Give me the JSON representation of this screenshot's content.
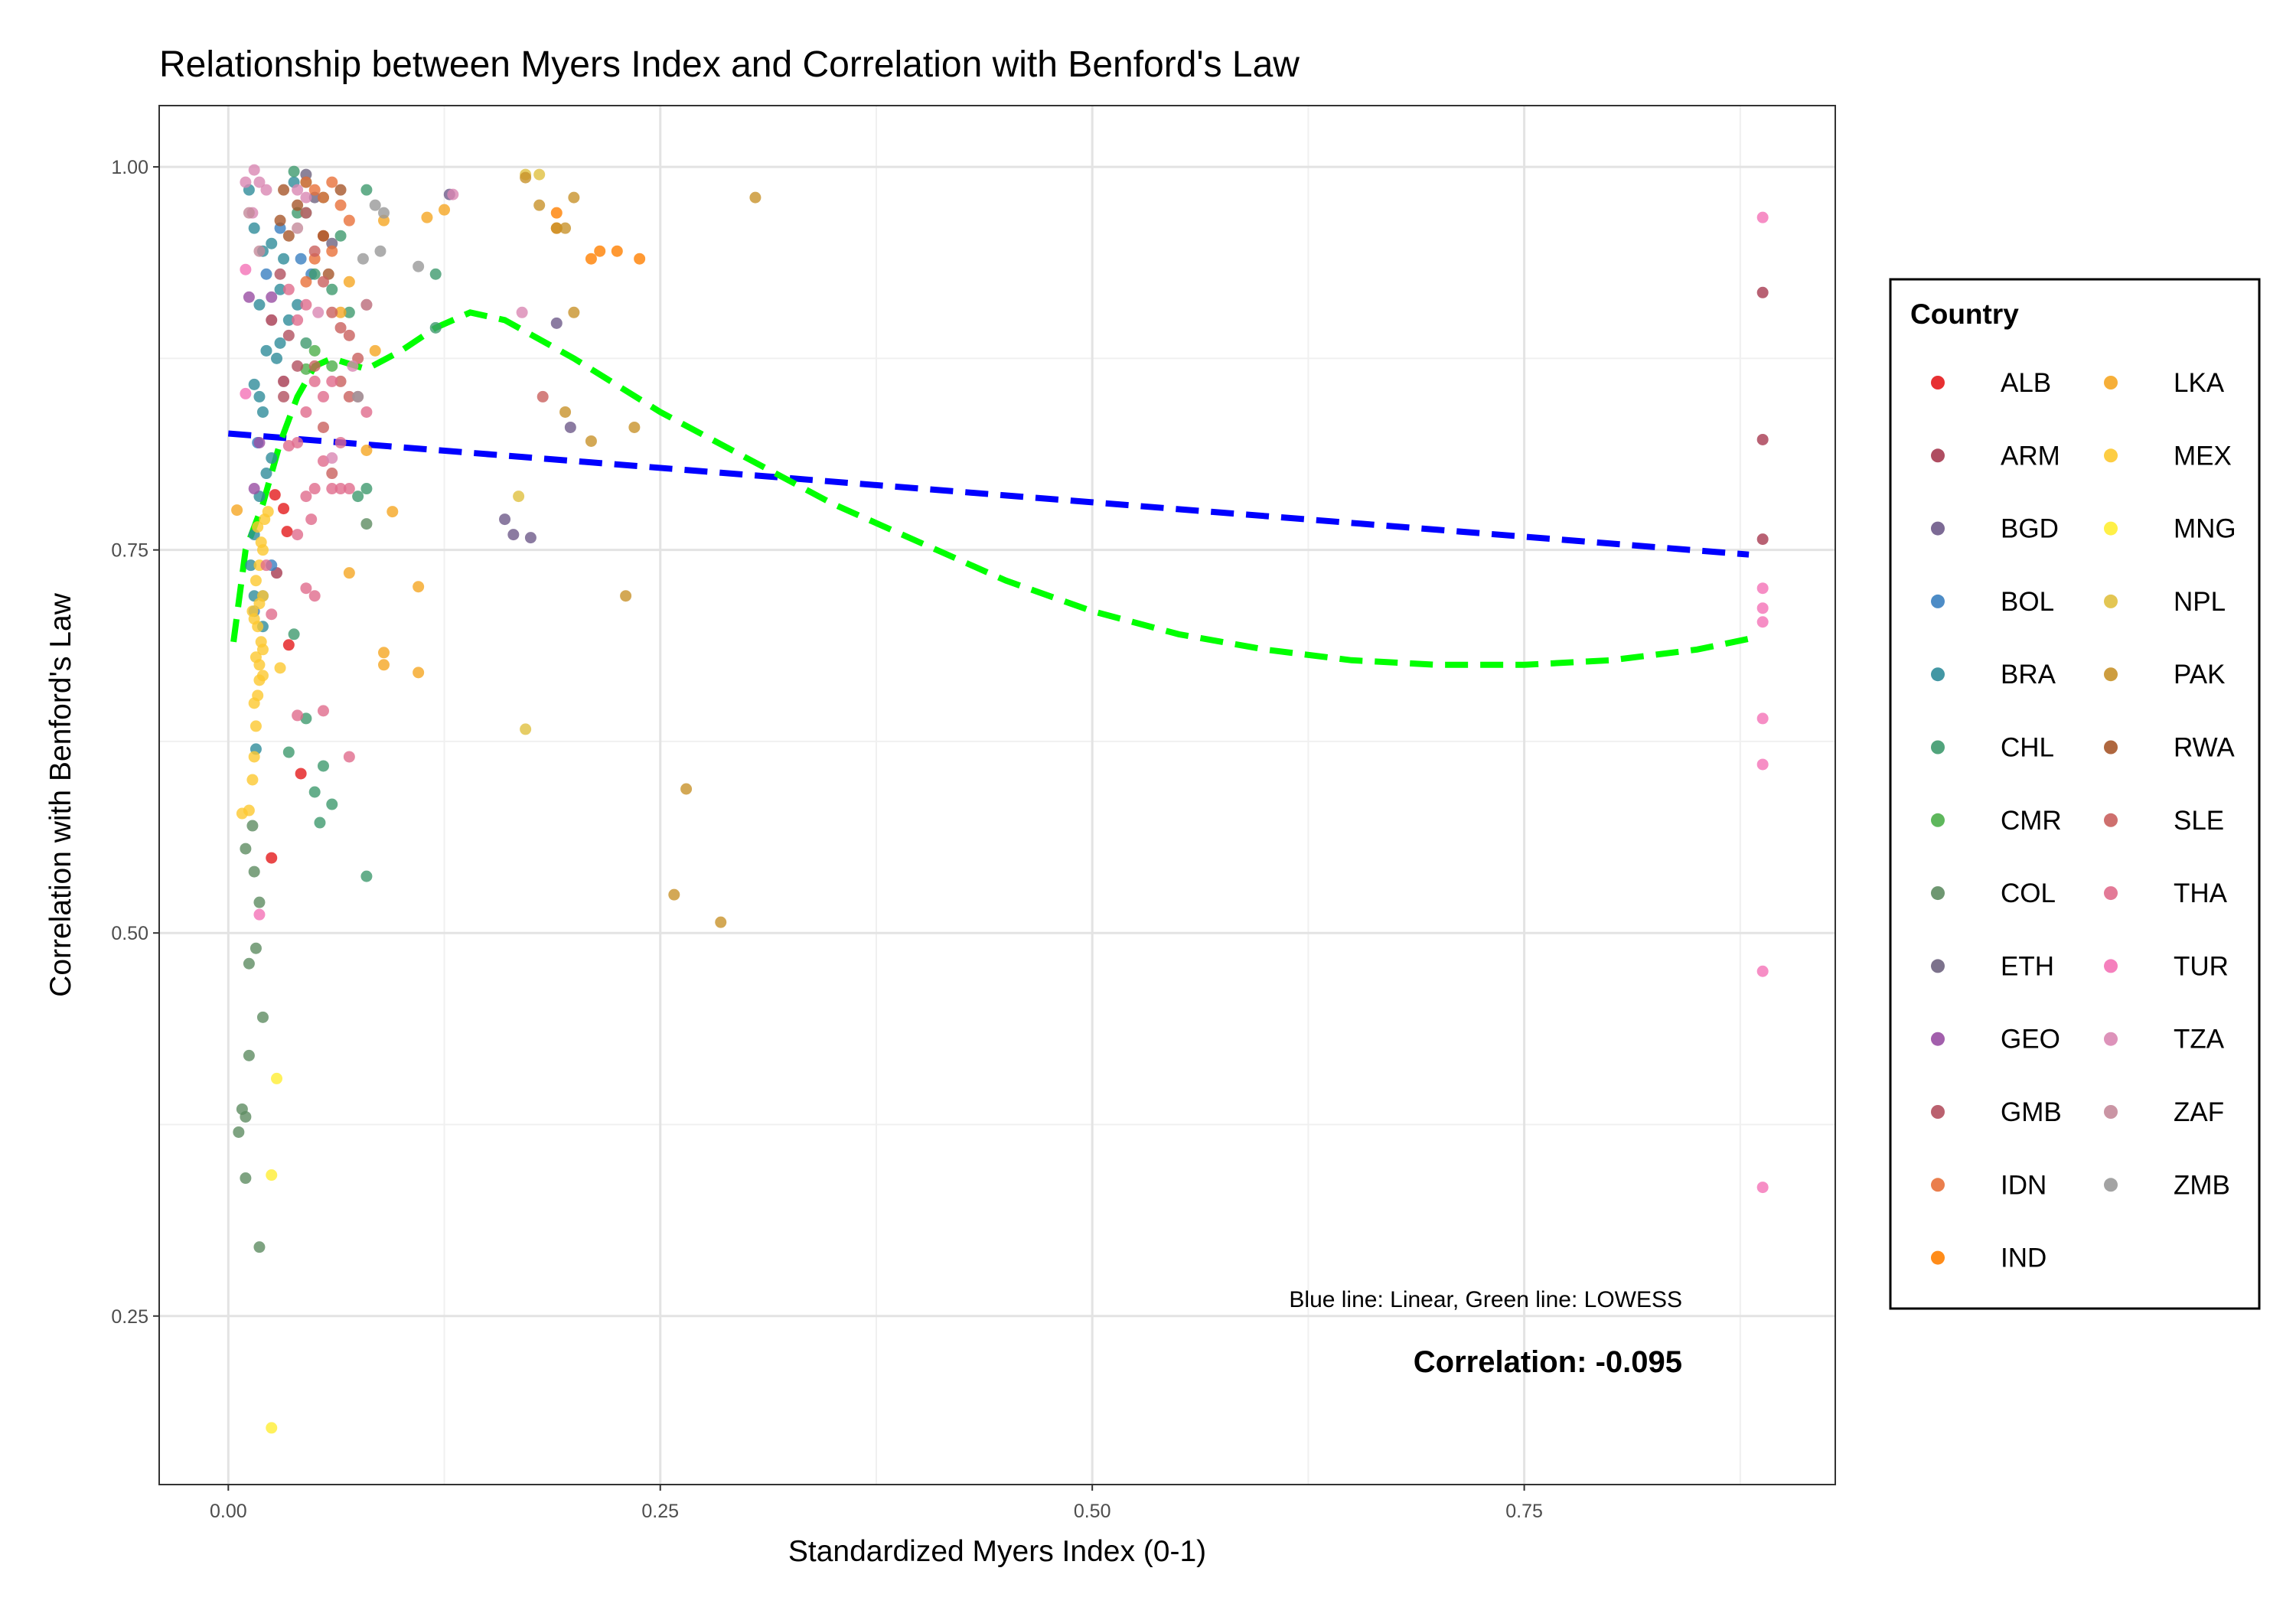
{
  "chart_data": {
    "type": "scatter",
    "title": "Relationship between Myers Index and Correlation with Benford's Law",
    "xlabel": "Standardized Myers Index (0-1)",
    "ylabel": "Correlation with Benford's Law",
    "xlim": [
      -0.04,
      0.93
    ],
    "ylim": [
      0.14,
      1.04
    ],
    "x_ticks": [
      0.0,
      0.25,
      0.5,
      0.75
    ],
    "x_tick_labels": [
      "0.00",
      "0.25",
      "0.50",
      "0.75"
    ],
    "y_ticks": [
      0.25,
      0.5,
      0.75,
      1.0
    ],
    "y_tick_labels": [
      "0.25",
      "0.50",
      "0.75",
      "1.00"
    ],
    "grid": true,
    "legend": {
      "title": "Country",
      "position": "right",
      "entries": [
        "ALB",
        "ARM",
        "BGD",
        "BOL",
        "BRA",
        "CHL",
        "CMR",
        "COL",
        "ETH",
        "GEO",
        "GMB",
        "IDN",
        "IND",
        "LKA",
        "MEX",
        "MNG",
        "NPL",
        "PAK",
        "RWA",
        "SLE",
        "THA",
        "TUR",
        "TZA",
        "ZAF",
        "ZMB"
      ]
    },
    "colors": {
      "ALB": "#E41A1C",
      "ARM": "#A63A50",
      "BGD": "#6E5A8A",
      "BOL": "#3A7FC0",
      "BRA": "#2F8C9A",
      "CHL": "#3E9A6E",
      "CMR": "#4DAF4A",
      "COL": "#5E8C62",
      "ETH": "#6E6380",
      "GEO": "#984EA3",
      "GMB": "#B2505F",
      "IDN": "#E8703A",
      "IND": "#FF7F00",
      "LKA": "#F5A623",
      "MEX": "#FDC82F",
      "MNG": "#FFEE33",
      "NPL": "#E0C040",
      "PAK": "#C8922A",
      "RWA": "#A6562A",
      "SLE": "#C9605E",
      "THA": "#E06C8C",
      "TUR": "#F472B6",
      "TZA": "#D987B3",
      "ZAF": "#C48A9A",
      "ZMB": "#999999"
    },
    "lines": [
      {
        "name": "Linear",
        "color": "#0000FF",
        "x": [
          0.0,
          0.88
        ],
        "y": [
          0.826,
          0.747
        ]
      },
      {
        "name": "LOWESS",
        "color": "#00FF00",
        "x": [
          0.003,
          0.01,
          0.02,
          0.03,
          0.04,
          0.05,
          0.06,
          0.08,
          0.1,
          0.12,
          0.14,
          0.16,
          0.2,
          0.25,
          0.3,
          0.35,
          0.4,
          0.45,
          0.5,
          0.55,
          0.6,
          0.65,
          0.7,
          0.75,
          0.8,
          0.85,
          0.88
        ],
        "y": [
          0.69,
          0.75,
          0.78,
          0.82,
          0.85,
          0.87,
          0.875,
          0.868,
          0.88,
          0.895,
          0.905,
          0.9,
          0.875,
          0.84,
          0.81,
          0.78,
          0.755,
          0.73,
          0.71,
          0.695,
          0.685,
          0.678,
          0.675,
          0.675,
          0.678,
          0.685,
          0.692
        ]
      }
    ],
    "points": {
      "ALB": [
        [
          0.025,
          0.549
        ],
        [
          0.035,
          0.688
        ],
        [
          0.042,
          0.604
        ],
        [
          0.034,
          0.762
        ],
        [
          0.027,
          0.786
        ],
        [
          0.032,
          0.777
        ]
      ],
      "ARM": [
        [
          0.888,
          0.918
        ],
        [
          0.888,
          0.822
        ],
        [
          0.888,
          0.757
        ],
        [
          0.025,
          0.9
        ],
        [
          0.032,
          0.86
        ],
        [
          0.028,
          0.735
        ]
      ],
      "BGD": [
        [
          0.16,
          0.77
        ],
        [
          0.165,
          0.76
        ],
        [
          0.175,
          0.758
        ],
        [
          0.19,
          0.898
        ],
        [
          0.198,
          0.83
        ],
        [
          0.128,
          0.982
        ]
      ],
      "BOL": [
        [
          0.042,
          0.94
        ],
        [
          0.022,
          0.93
        ],
        [
          0.017,
          0.82
        ],
        [
          0.02,
          0.72
        ],
        [
          0.015,
          0.71
        ],
        [
          0.025,
          0.74
        ],
        [
          0.03,
          0.96
        ],
        [
          0.048,
          0.93
        ]
      ],
      "BRA": [
        [
          0.012,
          0.985
        ],
        [
          0.015,
          0.96
        ],
        [
          0.02,
          0.945
        ],
        [
          0.025,
          0.95
        ],
        [
          0.03,
          0.92
        ],
        [
          0.018,
          0.91
        ],
        [
          0.022,
          0.88
        ],
        [
          0.028,
          0.875
        ],
        [
          0.015,
          0.858
        ],
        [
          0.018,
          0.85
        ],
        [
          0.02,
          0.84
        ],
        [
          0.025,
          0.81
        ],
        [
          0.022,
          0.8
        ],
        [
          0.018,
          0.785
        ],
        [
          0.015,
          0.76
        ],
        [
          0.013,
          0.74
        ],
        [
          0.015,
          0.72
        ],
        [
          0.02,
          0.7
        ],
        [
          0.016,
          0.62
        ],
        [
          0.035,
          0.9
        ],
        [
          0.04,
          0.91
        ],
        [
          0.032,
          0.94
        ],
        [
          0.038,
          0.99
        ],
        [
          0.045,
          0.97
        ],
        [
          0.03,
          0.885
        ]
      ],
      "CHL": [
        [
          0.038,
          0.997
        ],
        [
          0.045,
          0.99
        ],
        [
          0.055,
          0.98
        ],
        [
          0.04,
          0.97
        ],
        [
          0.065,
          0.955
        ],
        [
          0.05,
          0.93
        ],
        [
          0.06,
          0.92
        ],
        [
          0.07,
          0.905
        ],
        [
          0.045,
          0.885
        ],
        [
          0.08,
          0.79
        ],
        [
          0.075,
          0.785
        ],
        [
          0.038,
          0.695
        ],
        [
          0.035,
          0.618
        ],
        [
          0.045,
          0.64
        ],
        [
          0.05,
          0.592
        ],
        [
          0.055,
          0.609
        ],
        [
          0.06,
          0.584
        ],
        [
          0.053,
          0.572
        ],
        [
          0.08,
          0.537
        ],
        [
          0.12,
          0.93
        ],
        [
          0.12,
          0.895
        ],
        [
          0.08,
          0.985
        ]
      ],
      "CMR": [
        [
          0.05,
          0.88
        ],
        [
          0.06,
          0.87
        ],
        [
          0.045,
          0.868
        ]
      ],
      "COL": [
        [
          0.01,
          0.555
        ],
        [
          0.015,
          0.54
        ],
        [
          0.018,
          0.52
        ],
        [
          0.012,
          0.48
        ],
        [
          0.016,
          0.49
        ],
        [
          0.02,
          0.445
        ],
        [
          0.012,
          0.42
        ],
        [
          0.008,
          0.385
        ],
        [
          0.01,
          0.38
        ],
        [
          0.006,
          0.37
        ],
        [
          0.01,
          0.34
        ],
        [
          0.018,
          0.295
        ],
        [
          0.014,
          0.57
        ],
        [
          0.08,
          0.767
        ]
      ],
      "ETH": [
        [
          0.045,
          0.995
        ],
        [
          0.05,
          0.98
        ],
        [
          0.06,
          0.95
        ]
      ],
      "GEO": [
        [
          0.012,
          0.915
        ],
        [
          0.015,
          0.79
        ],
        [
          0.018,
          0.82
        ],
        [
          0.025,
          0.915
        ]
      ],
      "GMB": [
        [
          0.03,
          0.93
        ],
        [
          0.035,
          0.89
        ],
        [
          0.04,
          0.87
        ],
        [
          0.032,
          0.85
        ]
      ],
      "IDN": [
        [
          0.045,
          0.99
        ],
        [
          0.05,
          0.985
        ],
        [
          0.055,
          0.98
        ],
        [
          0.06,
          0.99
        ],
        [
          0.065,
          0.975
        ],
        [
          0.07,
          0.965
        ],
        [
          0.055,
          0.955
        ],
        [
          0.06,
          0.945
        ],
        [
          0.05,
          0.94
        ],
        [
          0.045,
          0.925
        ]
      ],
      "IND": [
        [
          0.19,
          0.97
        ],
        [
          0.21,
          0.94
        ],
        [
          0.215,
          0.945
        ],
        [
          0.225,
          0.945
        ],
        [
          0.238,
          0.94
        ],
        [
          0.19,
          0.96
        ]
      ],
      "LKA": [
        [
          0.005,
          0.776
        ],
        [
          0.07,
          0.735
        ],
        [
          0.085,
          0.88
        ],
        [
          0.09,
          0.965
        ],
        [
          0.095,
          0.775
        ],
        [
          0.09,
          0.683
        ],
        [
          0.09,
          0.675
        ],
        [
          0.11,
          0.726
        ],
        [
          0.11,
          0.67
        ],
        [
          0.115,
          0.967
        ],
        [
          0.125,
          0.972
        ],
        [
          0.08,
          0.815
        ],
        [
          0.07,
          0.925
        ],
        [
          0.065,
          0.905
        ]
      ],
      "MEX": [
        [
          0.008,
          0.578
        ],
        [
          0.012,
          0.58
        ],
        [
          0.014,
          0.6
        ],
        [
          0.015,
          0.615
        ],
        [
          0.016,
          0.635
        ],
        [
          0.015,
          0.65
        ],
        [
          0.017,
          0.655
        ],
        [
          0.018,
          0.665
        ],
        [
          0.02,
          0.668
        ],
        [
          0.018,
          0.675
        ],
        [
          0.016,
          0.68
        ],
        [
          0.019,
          0.69
        ],
        [
          0.017,
          0.7
        ],
        [
          0.014,
          0.71
        ],
        [
          0.018,
          0.715
        ],
        [
          0.02,
          0.72
        ],
        [
          0.016,
          0.73
        ],
        [
          0.018,
          0.74
        ],
        [
          0.02,
          0.75
        ],
        [
          0.019,
          0.755
        ],
        [
          0.017,
          0.765
        ],
        [
          0.021,
          0.77
        ],
        [
          0.023,
          0.775
        ],
        [
          0.015,
          0.705
        ],
        [
          0.02,
          0.685
        ],
        [
          0.03,
          0.673
        ]
      ],
      "MNG": [
        [
          0.028,
          0.405
        ],
        [
          0.025,
          0.342
        ],
        [
          0.025,
          0.177
        ]
      ],
      "NPL": [
        [
          0.172,
          0.633
        ],
        [
          0.168,
          0.785
        ],
        [
          0.18,
          0.995
        ],
        [
          0.172,
          0.995
        ]
      ],
      "PAK": [
        [
          0.172,
          0.993
        ],
        [
          0.18,
          0.975
        ],
        [
          0.19,
          0.96
        ],
        [
          0.195,
          0.96
        ],
        [
          0.2,
          0.905
        ],
        [
          0.21,
          0.821
        ],
        [
          0.235,
          0.83
        ],
        [
          0.23,
          0.72
        ],
        [
          0.265,
          0.594
        ],
        [
          0.258,
          0.525
        ],
        [
          0.285,
          0.507
        ],
        [
          0.305,
          0.98
        ],
        [
          0.2,
          0.98
        ],
        [
          0.195,
          0.84
        ]
      ],
      "RWA": [
        [
          0.03,
          0.965
        ],
        [
          0.035,
          0.955
        ],
        [
          0.032,
          0.985
        ],
        [
          0.04,
          0.975
        ],
        [
          0.055,
          0.955
        ],
        [
          0.065,
          0.985
        ],
        [
          0.058,
          0.93
        ]
      ],
      "SLE": [
        [
          0.045,
          0.97
        ],
        [
          0.05,
          0.945
        ],
        [
          0.055,
          0.925
        ],
        [
          0.06,
          0.905
        ],
        [
          0.065,
          0.895
        ],
        [
          0.07,
          0.89
        ],
        [
          0.075,
          0.875
        ],
        [
          0.08,
          0.91
        ],
        [
          0.07,
          0.85
        ],
        [
          0.065,
          0.86
        ],
        [
          0.05,
          0.87
        ],
        [
          0.182,
          0.85
        ],
        [
          0.055,
          0.83
        ],
        [
          0.06,
          0.8
        ]
      ],
      "THA": [
        [
          0.035,
          0.92
        ],
        [
          0.04,
          0.9
        ],
        [
          0.045,
          0.91
        ],
        [
          0.05,
          0.86
        ],
        [
          0.055,
          0.85
        ],
        [
          0.045,
          0.84
        ],
        [
          0.04,
          0.82
        ],
        [
          0.035,
          0.818
        ],
        [
          0.055,
          0.808
        ],
        [
          0.065,
          0.82
        ],
        [
          0.07,
          0.79
        ],
        [
          0.05,
          0.79
        ],
        [
          0.045,
          0.785
        ],
        [
          0.048,
          0.77
        ],
        [
          0.04,
          0.76
        ],
        [
          0.045,
          0.725
        ],
        [
          0.05,
          0.72
        ],
        [
          0.055,
          0.645
        ],
        [
          0.04,
          0.642
        ],
        [
          0.07,
          0.615
        ],
        [
          0.025,
          0.708
        ],
        [
          0.022,
          0.74
        ],
        [
          0.06,
          0.86
        ],
        [
          0.075,
          0.85
        ],
        [
          0.08,
          0.84
        ],
        [
          0.06,
          0.79
        ],
        [
          0.065,
          0.79
        ]
      ],
      "TUR": [
        [
          0.01,
          0.933
        ],
        [
          0.01,
          0.852
        ],
        [
          0.018,
          0.512
        ],
        [
          0.888,
          0.967
        ],
        [
          0.888,
          0.725
        ],
        [
          0.888,
          0.712
        ],
        [
          0.888,
          0.703
        ],
        [
          0.888,
          0.64
        ],
        [
          0.888,
          0.61
        ],
        [
          0.888,
          0.475
        ],
        [
          0.888,
          0.334
        ]
      ],
      "TZA": [
        [
          0.01,
          0.99
        ],
        [
          0.015,
          0.998
        ],
        [
          0.018,
          0.99
        ],
        [
          0.022,
          0.985
        ],
        [
          0.014,
          0.97
        ],
        [
          0.04,
          0.985
        ],
        [
          0.045,
          0.98
        ],
        [
          0.13,
          0.982
        ],
        [
          0.17,
          0.905
        ],
        [
          0.06,
          0.81
        ],
        [
          0.072,
          0.87
        ],
        [
          0.052,
          0.905
        ]
      ],
      "ZAF": [
        [
          0.012,
          0.97
        ],
        [
          0.018,
          0.945
        ],
        [
          0.08,
          0.91
        ],
        [
          0.04,
          0.96
        ]
      ],
      "ZMB": [
        [
          0.085,
          0.975
        ],
        [
          0.088,
          0.945
        ],
        [
          0.078,
          0.94
        ],
        [
          0.11,
          0.935
        ],
        [
          0.075,
          0.85
        ],
        [
          0.09,
          0.97
        ]
      ]
    },
    "annotations": {
      "note": "Blue line: Linear, Green line: LOWESS",
      "correlation": "Correlation: -0.095"
    }
  }
}
